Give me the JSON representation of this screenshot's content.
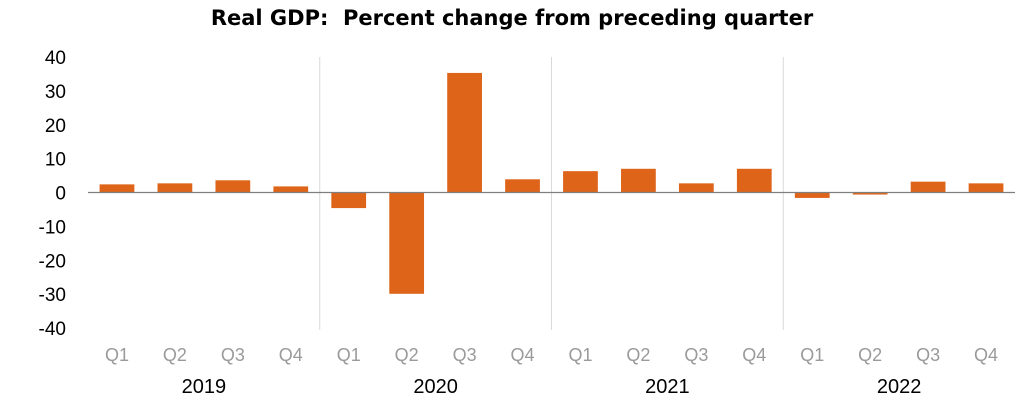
{
  "chart_data": {
    "type": "bar",
    "title": "Real GDP:  Percent change from preceding quarter",
    "xlabel": "",
    "ylabel": "",
    "ylim": [
      -40,
      40
    ],
    "yticks": [
      40,
      30,
      20,
      10,
      0,
      -10,
      -20,
      -30,
      -40
    ],
    "groups": [
      "2019",
      "2020",
      "2021",
      "2022"
    ],
    "categories": [
      "Q1",
      "Q2",
      "Q3",
      "Q4",
      "Q1",
      "Q2",
      "Q3",
      "Q4",
      "Q1",
      "Q2",
      "Q3",
      "Q4",
      "Q1",
      "Q2",
      "Q3",
      "Q4"
    ],
    "values": [
      2.4,
      2.7,
      3.6,
      1.8,
      -4.6,
      -29.9,
      35.3,
      3.9,
      6.3,
      7.0,
      2.7,
      7.0,
      -1.6,
      -0.6,
      3.2,
      2.7
    ],
    "bar_color": "#dd6419",
    "grid": false,
    "legend": "none"
  }
}
